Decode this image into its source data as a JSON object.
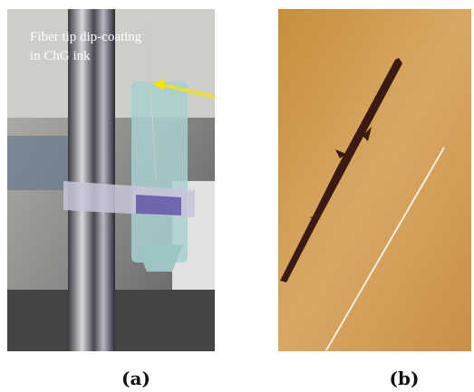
{
  "panels": [
    {
      "label": "(a)",
      "annotation": [
        "Fiber tip dip-coating",
        "in ChG ink"
      ]
    },
    {
      "label": "(b)"
    }
  ]
}
